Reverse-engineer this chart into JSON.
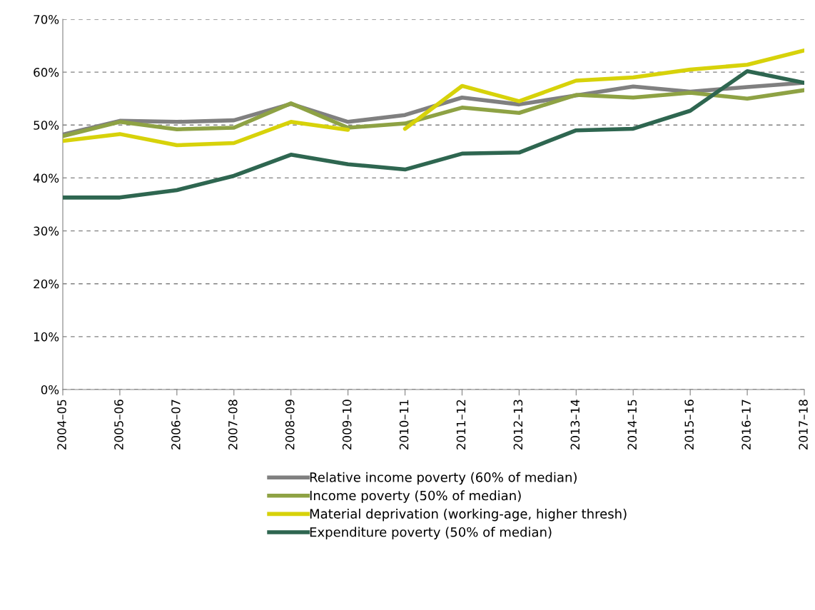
{
  "chart_data": {
    "type": "line",
    "categories": [
      "2004–05",
      "2005–06",
      "2006–07",
      "2007–08",
      "2008–09",
      "2009–10",
      "2010–11",
      "2011–12",
      "2012–13",
      "2013–14",
      "2014–15",
      "2015–16",
      "2016–17",
      "2017–18"
    ],
    "series": [
      {
        "name": "Relative income poverty (60% of median)",
        "color": "#808080",
        "values": [
          48.2,
          50.8,
          50.6,
          50.9,
          54.0,
          50.6,
          51.9,
          55.2,
          53.9,
          55.6,
          57.3,
          56.3,
          57.2,
          58.0
        ]
      },
      {
        "name": "Income poverty (50% of median)",
        "color": "#8ea244",
        "values": [
          47.9,
          50.6,
          49.2,
          49.5,
          54.1,
          49.5,
          50.3,
          53.3,
          52.3,
          55.7,
          55.2,
          56.1,
          55.0,
          56.6
        ]
      },
      {
        "name": "Material deprivation (working-age, higher thresh)",
        "color": "#d7d20a",
        "values": [
          47.0,
          48.3,
          46.2,
          46.6,
          50.6,
          49.1,
          null,
          null,
          null,
          null,
          null,
          null,
          null,
          null
        ]
      },
      {
        "color": "#d7d20a",
        "values": [
          null,
          null,
          null,
          null,
          null,
          null,
          49.3,
          57.4,
          54.5,
          58.4,
          59.0,
          60.5,
          61.4,
          64.1
        ]
      },
      {
        "name": "Expenditure poverty (50% of median)",
        "color": "#2e6650",
        "values": [
          36.3,
          36.3,
          37.7,
          40.4,
          44.4,
          42.6,
          41.6,
          44.6,
          44.8,
          49.0,
          49.3,
          52.7,
          60.2,
          58.0
        ]
      }
    ],
    "ylim": [
      0,
      70
    ],
    "yticks": [
      {
        "value": 0,
        "label": "0%"
      },
      {
        "value": 10,
        "label": "10%"
      },
      {
        "value": 20,
        "label": "20%"
      },
      {
        "value": 30,
        "label": "30%"
      },
      {
        "value": 40,
        "label": "40%"
      },
      {
        "value": 50,
        "label": "50%"
      },
      {
        "value": 60,
        "label": "60%"
      },
      {
        "value": 70,
        "label": "70%"
      }
    ],
    "grid": "y",
    "legend": "bottom",
    "marker": "none",
    "line_style": "solid"
  }
}
